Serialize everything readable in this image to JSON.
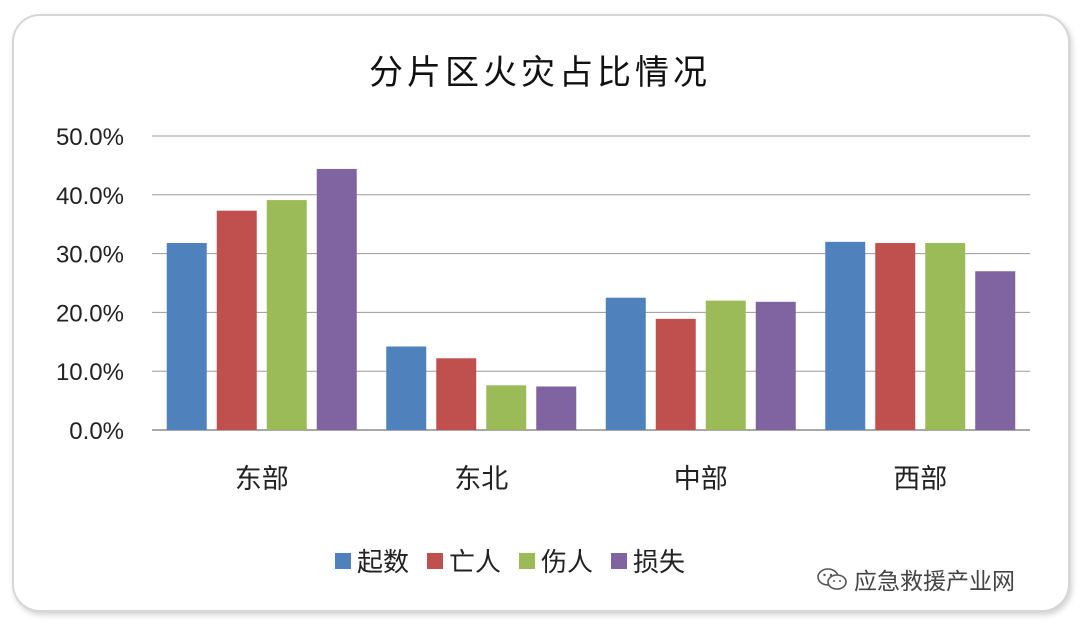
{
  "chart_data": {
    "type": "bar",
    "title": "分片区火灾占比情况",
    "categories": [
      "东部",
      "东北",
      "中部",
      "西部"
    ],
    "series": [
      {
        "name": "起数",
        "color": "#4f81bd",
        "values": [
          31.8,
          14.2,
          22.5,
          32.0
        ]
      },
      {
        "name": "亡人",
        "color": "#c0504d",
        "values": [
          37.3,
          12.2,
          18.9,
          31.8
        ]
      },
      {
        "name": "伤人",
        "color": "#9bbb59",
        "values": [
          39.1,
          7.6,
          22.0,
          31.8
        ]
      },
      {
        "name": "损失",
        "color": "#8064a2",
        "values": [
          44.4,
          7.4,
          21.8,
          27.0
        ]
      }
    ],
    "yticks": [
      "0.0%",
      "10.0%",
      "20.0%",
      "30.0%",
      "40.0%",
      "50.0%"
    ],
    "ylim": [
      0,
      50
    ],
    "grid": true,
    "legend_position": "bottom"
  },
  "watermark": {
    "text": "应急救援产业网",
    "icon": "wechat-icon"
  }
}
